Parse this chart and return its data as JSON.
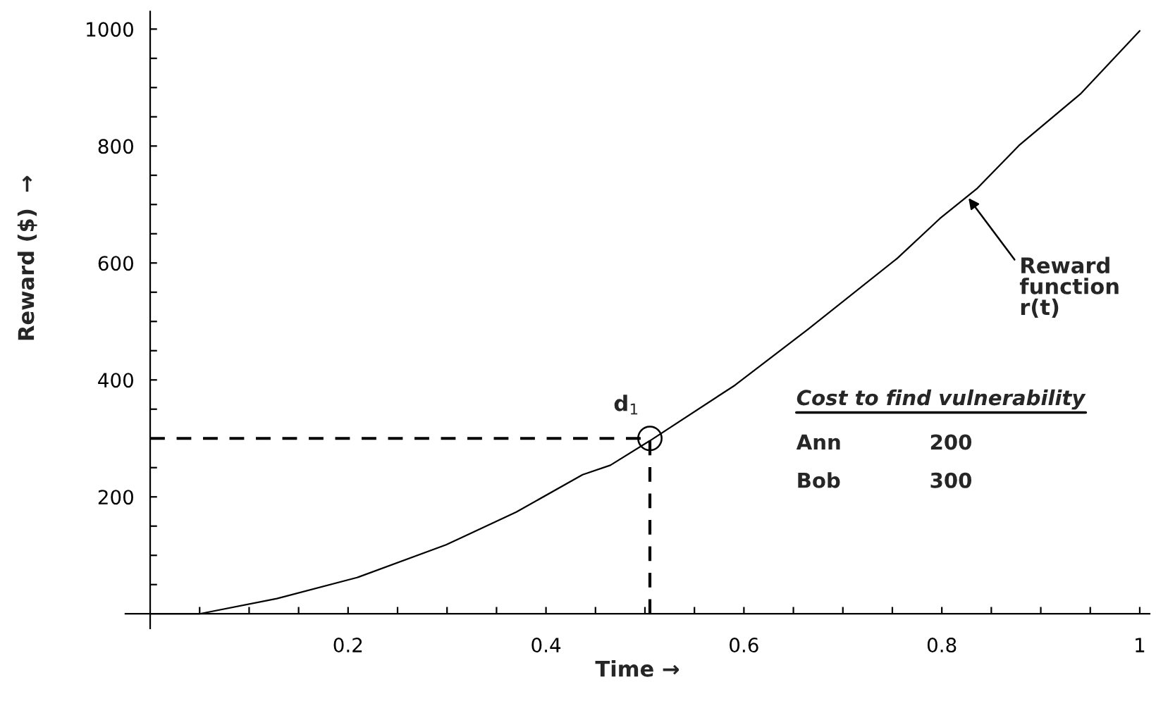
{
  "chart_data": {
    "type": "line",
    "xlabel": "Time →",
    "ylabel": "Reward ($)  →",
    "series": [
      {
        "color": "#000000",
        "x": [
          0,
          0.05,
          0.128,
          0.209,
          0.299,
          0.37,
          0.437,
          0.465,
          0.505,
          0.591,
          0.665,
          0.755,
          0.798,
          0.836,
          0.878,
          0.94,
          1.0
        ],
        "values": [
          0,
          0,
          26,
          62,
          118,
          174,
          238,
          254,
          296,
          391,
          487,
          608,
          676,
          728,
          801,
          889,
          997
        ]
      }
    ],
    "xlim": [
      -0.025,
      1.01
    ],
    "ylim": [
      -25,
      1030
    ],
    "xticks": [
      {
        "value": 0.05,
        "label": null
      },
      {
        "value": 0.1,
        "label": null
      },
      {
        "value": 0.15,
        "label": null
      },
      0.2,
      {
        "value": 0.25,
        "label": null
      },
      {
        "value": 0.3,
        "label": null
      },
      {
        "value": 0.35,
        "label": null
      },
      0.4,
      {
        "value": 0.45,
        "label": null
      },
      {
        "value": 0.5,
        "label": null
      },
      {
        "value": 0.55,
        "label": null
      },
      0.6,
      {
        "value": 0.65,
        "label": null
      },
      {
        "value": 0.7,
        "label": null
      },
      {
        "value": 0.75,
        "label": null
      },
      0.8,
      {
        "value": 0.85,
        "label": null
      },
      {
        "value": 0.9,
        "label": null
      },
      {
        "value": 0.95,
        "label": null
      },
      1
    ],
    "yticks": [
      {
        "value": 50,
        "label": null
      },
      {
        "value": 100,
        "label": null
      },
      {
        "value": 150,
        "label": null
      },
      200,
      {
        "value": 250,
        "label": null
      },
      {
        "value": 300,
        "label": null
      },
      {
        "value": 350,
        "label": null
      },
      400,
      {
        "value": 450,
        "label": null
      },
      {
        "value": 500,
        "label": null
      },
      {
        "value": 550,
        "label": null
      },
      600,
      {
        "value": 650,
        "label": null
      },
      {
        "value": 700,
        "label": null
      },
      {
        "value": 750,
        "label": null
      },
      800,
      {
        "value": 850,
        "label": null
      },
      {
        "value": 900,
        "label": null
      },
      {
        "value": 950,
        "label": null
      },
      1000
    ],
    "ref_lines": [
      {
        "axis": "y",
        "value": 300,
        "line_style": "dashed"
      },
      {
        "axis": "x",
        "value": 0.505,
        "line_style": "dashed"
      }
    ],
    "annotations": [
      {
        "text": "d$_{1}$",
        "x": 0.505,
        "y": 300
      },
      {
        "text": "Reward\nfunction\nr(t)",
        "x": 0.827,
        "y": 711
      },
      "Cost to find vulnerability",
      "Ann",
      "200",
      "Bob",
      "300"
    ],
    "grid": false
  }
}
